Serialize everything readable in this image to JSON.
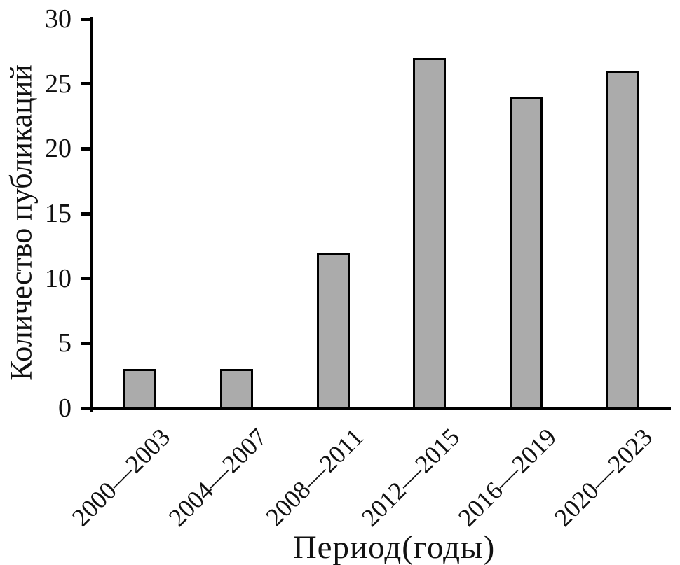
{
  "chart_data": {
    "type": "bar",
    "title": "",
    "categories": [
      "2000—2003",
      "2004—2007",
      "2008—2011",
      "2012—2015",
      "2016—2019",
      "2020—2023"
    ],
    "values": [
      3,
      3,
      12,
      27,
      24,
      26
    ],
    "xlabel": "Период(годы)",
    "ylabel": "Количество публикаций",
    "yticks": [
      0,
      5,
      10,
      15,
      20,
      25,
      30
    ],
    "ylim": [
      0,
      30
    ],
    "grid": "off",
    "legend": "none",
    "colors": {
      "bar_fill": "#ABABAB",
      "bar_border": "#000000",
      "axis": "#000000",
      "text": "#111111",
      "background": "#ffffff"
    }
  }
}
